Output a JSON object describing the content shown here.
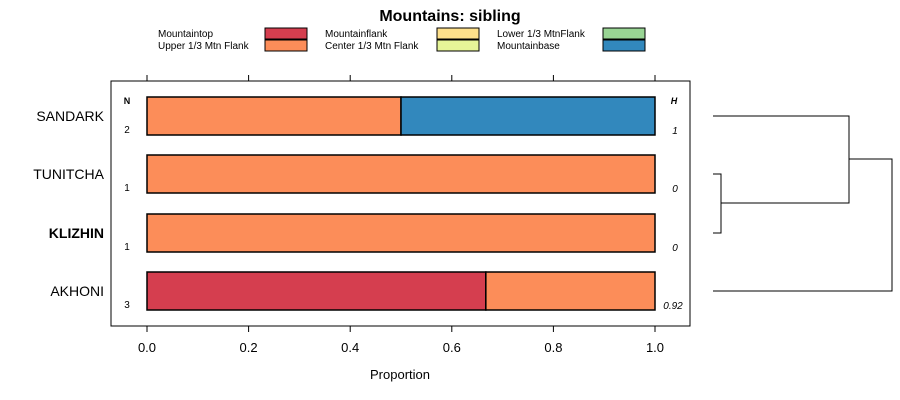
{
  "chart_data": {
    "type": "bar",
    "orientation": "horizontal",
    "stacked": true,
    "title": "Mountains: sibling",
    "xlabel": "Proportion",
    "ylabel": "",
    "xlim": [
      0,
      1
    ],
    "x_ticks": [
      "0.0",
      "0.2",
      "0.4",
      "0.6",
      "0.8",
      "1.0"
    ],
    "x_tick_values": [
      0,
      0.2,
      0.4,
      0.6,
      0.8,
      1.0
    ],
    "n_header": "N",
    "h_header": "H",
    "legend": [
      {
        "name": "Mountaintop",
        "color": "#d53e4f"
      },
      {
        "name": "Upper 1/3 Mtn Flank",
        "color": "#fc8d59"
      },
      {
        "name": "Mountainflank",
        "color": "#fee08b"
      },
      {
        "name": "Center 1/3 Mtn Flank",
        "color": "#e6f598"
      },
      {
        "name": "Lower 1/3 MtnFlank",
        "color": "#99d594"
      },
      {
        "name": "Mountainbase",
        "color": "#3288bd"
      }
    ],
    "categories": [
      "SANDARK",
      "TUNITCHA",
      "KLIZHIN",
      "AKHONI"
    ],
    "bold_category": "KLIZHIN",
    "n": [
      "2",
      "1",
      "1",
      "3"
    ],
    "h": [
      "1",
      "0",
      "0",
      "0.92"
    ],
    "series": [
      {
        "name": "Mountaintop",
        "values": [
          0,
          0,
          0,
          0.667
        ]
      },
      {
        "name": "Upper 1/3 Mtn Flank",
        "values": [
          0.5,
          1,
          1,
          0.333
        ]
      },
      {
        "name": "Mountainflank",
        "values": [
          0,
          0,
          0,
          0
        ]
      },
      {
        "name": "Center 1/3 Mtn Flank",
        "values": [
          0,
          0,
          0,
          0
        ]
      },
      {
        "name": "Lower 1/3 MtnFlank",
        "values": [
          0,
          0,
          0,
          0
        ]
      },
      {
        "name": "Mountainbase",
        "values": [
          0.5,
          0,
          0,
          0
        ]
      }
    ]
  }
}
